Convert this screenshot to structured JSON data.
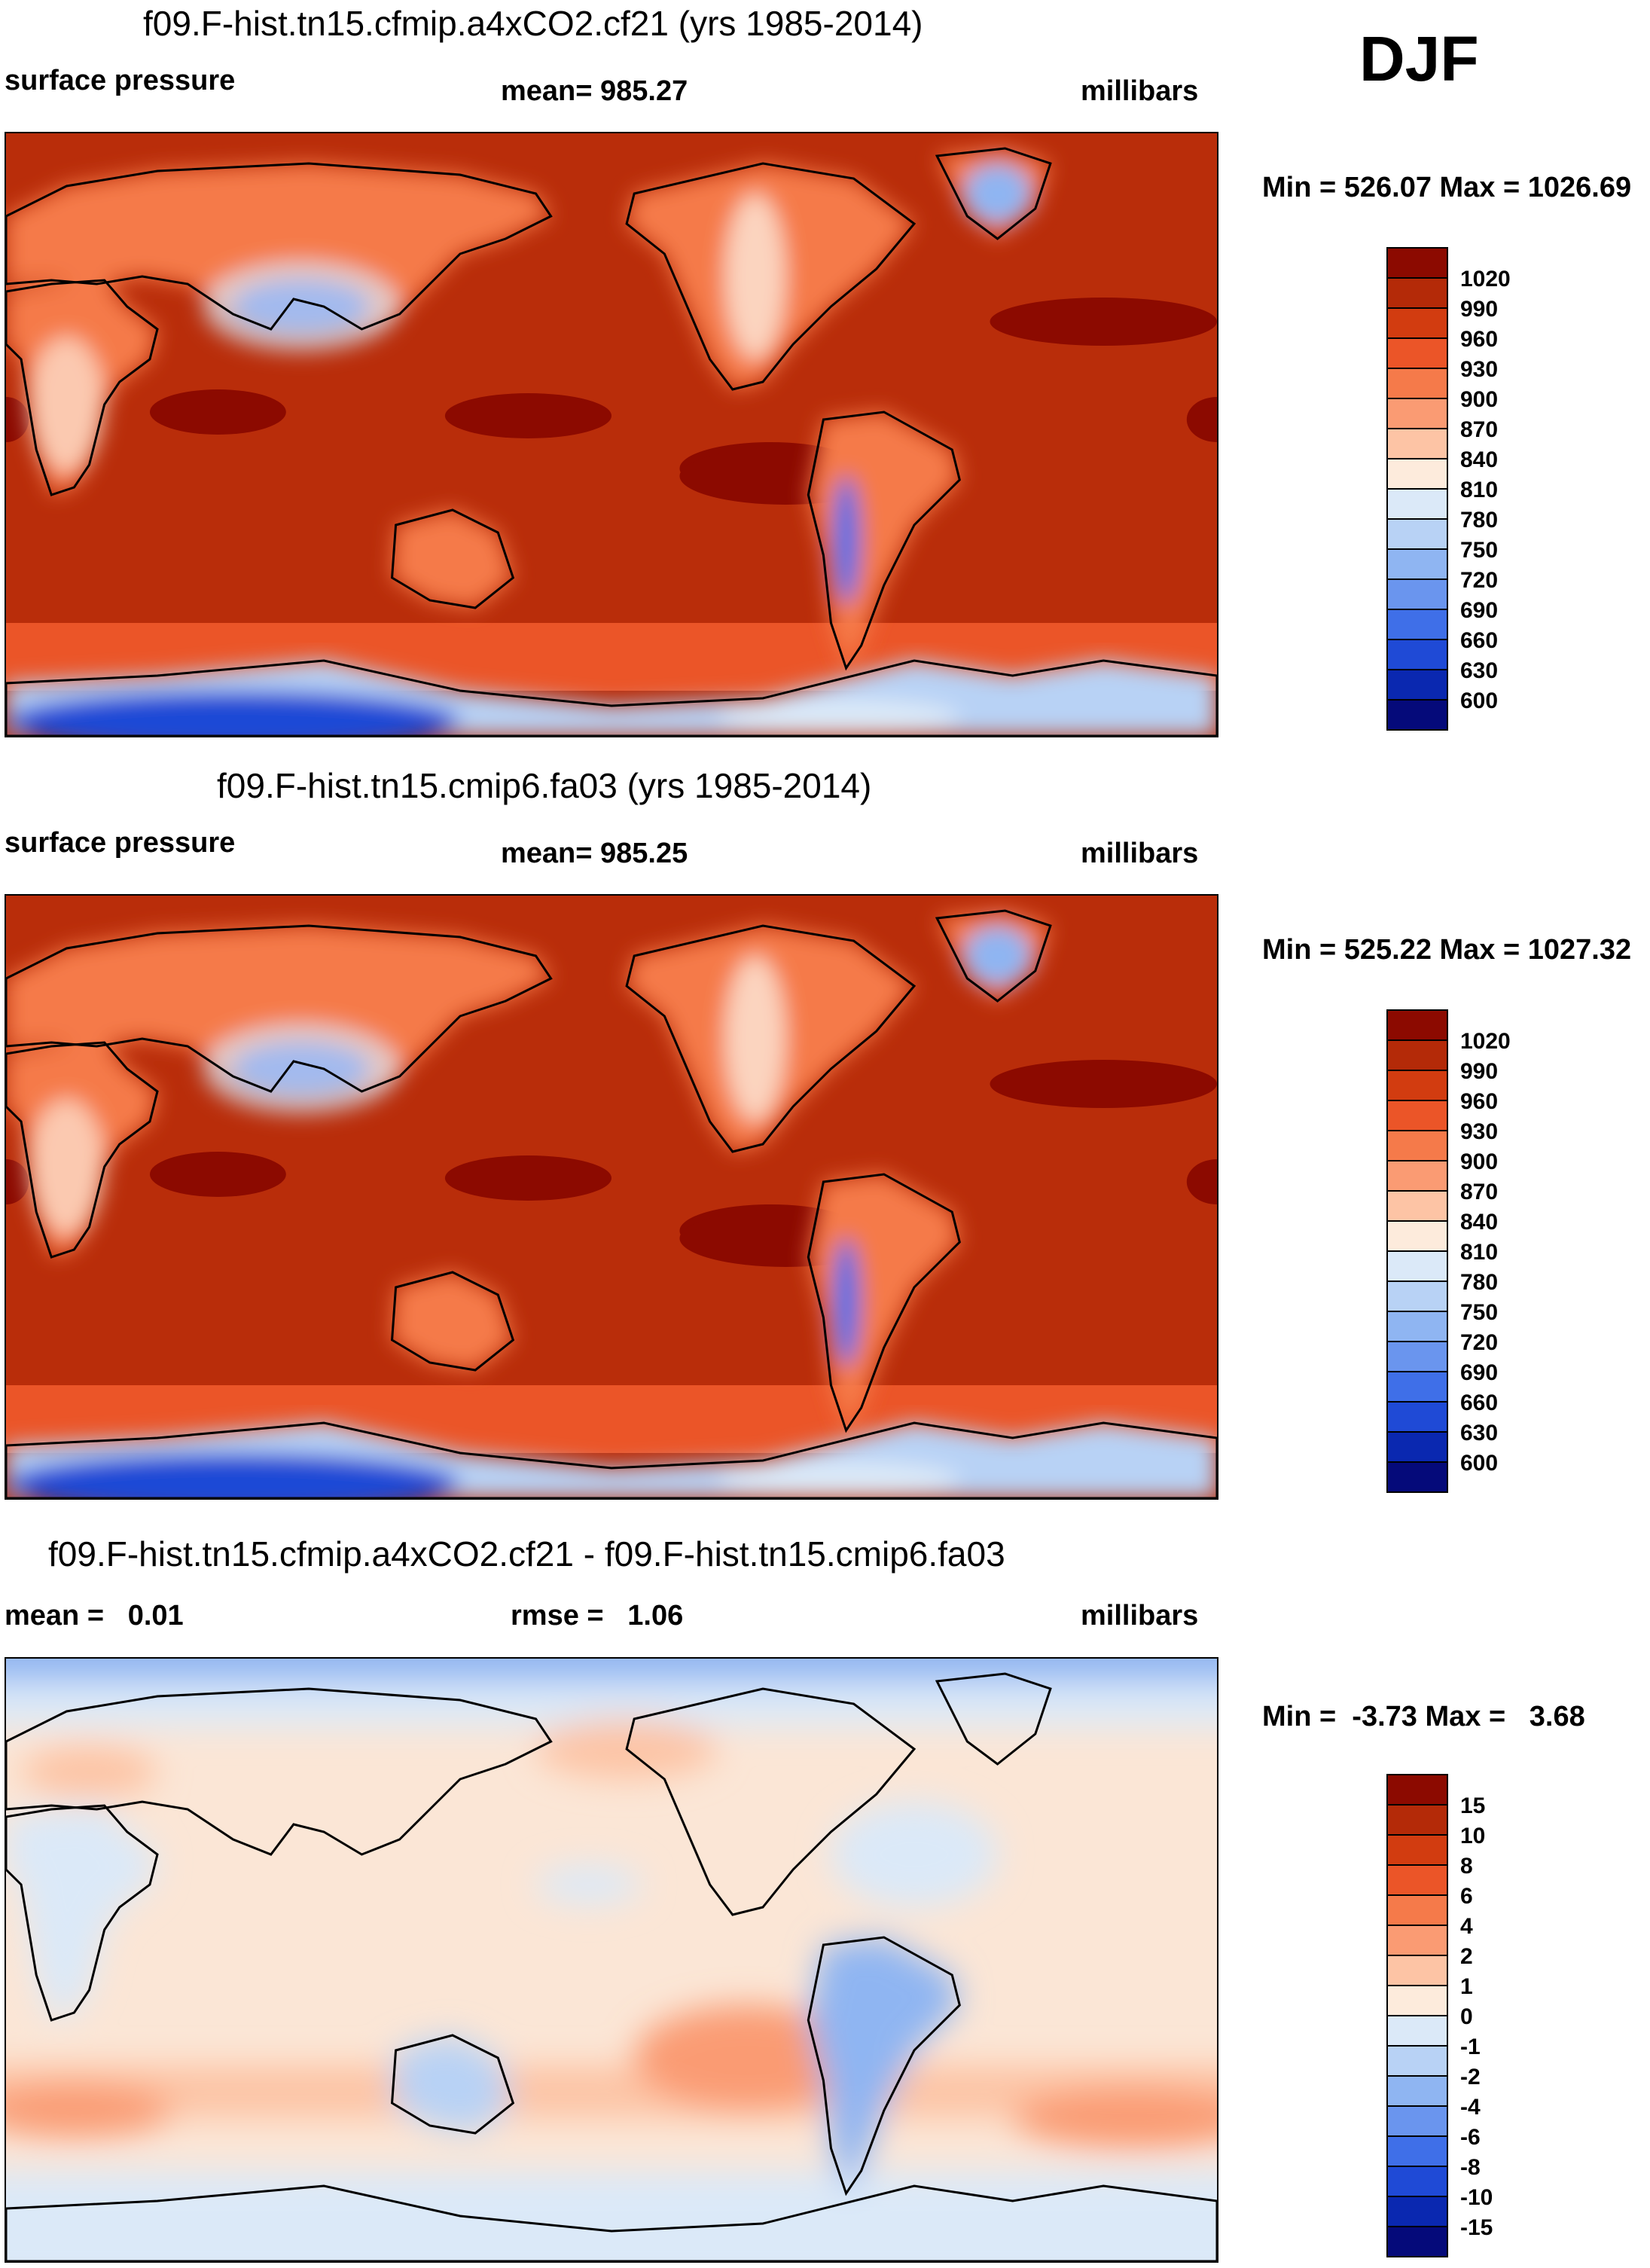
{
  "season": "DJF",
  "panels": [
    {
      "title": "f09.F-hist.tn15.cfmip.a4xCO2.cf21 (yrs 1985-2014)",
      "left_label": "surface pressure",
      "center_label": "mean= 985.27",
      "right_label": "millibars",
      "minmax": "Min = 526.07 Max = 1026.69",
      "ocean_color": "#b92d0a"
    },
    {
      "title": "f09.F-hist.tn15.cmip6.fa03 (yrs 1985-2014)",
      "left_label": "surface pressure",
      "center_label": "mean= 985.25",
      "right_label": "millibars",
      "minmax": "Min = 525.22 Max = 1027.32",
      "ocean_color": "#b92d0a"
    },
    {
      "title": "f09.F-hist.tn15.cfmip.a4xCO2.cf21 - f09.F-hist.tn15.cmip6.fa03",
      "left_label": "mean =   0.01",
      "center_label": "rmse =   1.06",
      "right_label": "millibars",
      "minmax": "Min =  -3.73 Max =   3.68",
      "ocean_color": "#fbe6d6"
    }
  ],
  "colorbars": {
    "absolute": {
      "labels": [
        "1020",
        "990",
        "960",
        "930",
        "900",
        "870",
        "840",
        "810",
        "780",
        "750",
        "720",
        "690",
        "660",
        "630",
        "600"
      ],
      "colors": [
        "#8c0a00",
        "#b42a08",
        "#d23c10",
        "#eb5528",
        "#f57a4a",
        "#fa9b73",
        "#fdc4a5",
        "#fdebdc",
        "#dbe9f8",
        "#b8d2f5",
        "#8fb5f2",
        "#6a95ee",
        "#3f6fe8",
        "#1f4ad6",
        "#0a28b0",
        "#050a7a"
      ]
    },
    "difference": {
      "labels": [
        "15",
        "10",
        "8",
        "6",
        "4",
        "2",
        "1",
        "0",
        "-1",
        "-2",
        "-4",
        "-6",
        "-8",
        "-10",
        "-15"
      ],
      "colors": [
        "#8c0a00",
        "#b42a08",
        "#d23c10",
        "#eb5528",
        "#f57a4a",
        "#fa9b73",
        "#fdc4a5",
        "#fdebdc",
        "#dbe9f8",
        "#b8d2f5",
        "#8fb5f2",
        "#6a95ee",
        "#3f6fe8",
        "#1f4ad6",
        "#0a28b0",
        "#050a7a"
      ]
    }
  }
}
